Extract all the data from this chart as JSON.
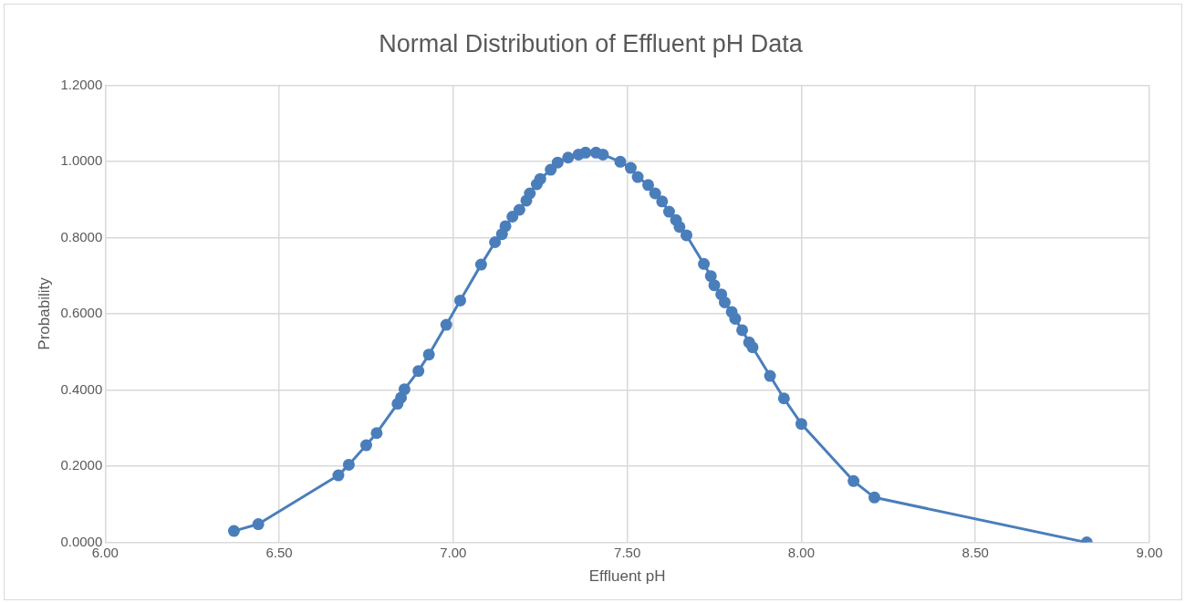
{
  "chart_data": {
    "type": "line",
    "title": "Normal Distribution of Effluent pH Data",
    "xlabel": "Effluent pH",
    "ylabel": "Probability",
    "xlim": [
      6,
      9
    ],
    "xticks": [
      {
        "value": 6,
        "label": "6.00"
      },
      {
        "value": 6.5,
        "label": "6.50"
      },
      {
        "value": 7,
        "label": "7.00"
      },
      {
        "value": 7.5,
        "label": "7.50"
      },
      {
        "value": 8,
        "label": "8.00"
      },
      {
        "value": 8.5,
        "label": "8.50"
      },
      {
        "value": 9,
        "label": "9.00"
      }
    ],
    "ylim": [
      0,
      1.2
    ],
    "yticks": [
      {
        "value": 0,
        "label": "0.0000"
      },
      {
        "value": 0.2,
        "label": "0.2000"
      },
      {
        "value": 0.4,
        "label": "0.4000"
      },
      {
        "value": 0.6,
        "label": "0.6000"
      },
      {
        "value": 0.8,
        "label": "0.8000"
      },
      {
        "value": 1,
        "label": "1.0000"
      },
      {
        "value": 1.2,
        "label": "1.2000"
      }
    ],
    "grid": true,
    "legend": false,
    "marker": "circle",
    "line_style": "solid",
    "series": [
      {
        "color": "#4a7ebb",
        "x": [
          6.37,
          6.44,
          6.67,
          6.7,
          6.75,
          6.78,
          6.84,
          6.85,
          6.86,
          6.9,
          6.93,
          6.98,
          7.02,
          7.08,
          7.12,
          7.14,
          7.15,
          7.17,
          7.19,
          7.21,
          7.22,
          7.24,
          7.25,
          7.28,
          7.3,
          7.33,
          7.36,
          7.38,
          7.41,
          7.43,
          7.48,
          7.51,
          7.53,
          7.56,
          7.58,
          7.6,
          7.62,
          7.64,
          7.65,
          7.67,
          7.72,
          7.74,
          7.75,
          7.77,
          7.78,
          7.8,
          7.81,
          7.83,
          7.85,
          7.86,
          7.91,
          7.95,
          8.0,
          8.15,
          8.21,
          8.82
        ],
        "values": [
          0.03,
          0.048,
          0.176,
          0.204,
          0.255,
          0.287,
          0.364,
          0.38,
          0.402,
          0.45,
          0.493,
          0.571,
          0.635,
          0.729,
          0.788,
          0.809,
          0.83,
          0.855,
          0.873,
          0.897,
          0.916,
          0.94,
          0.954,
          0.978,
          0.997,
          1.01,
          1.018,
          1.023,
          1.023,
          1.018,
          0.999,
          0.983,
          0.959,
          0.938,
          0.916,
          0.895,
          0.868,
          0.846,
          0.828,
          0.806,
          0.731,
          0.699,
          0.675,
          0.651,
          0.63,
          0.605,
          0.587,
          0.557,
          0.525,
          0.512,
          0.437,
          0.378,
          0.311,
          0.161,
          0.118,
          0.0
        ]
      }
    ]
  }
}
